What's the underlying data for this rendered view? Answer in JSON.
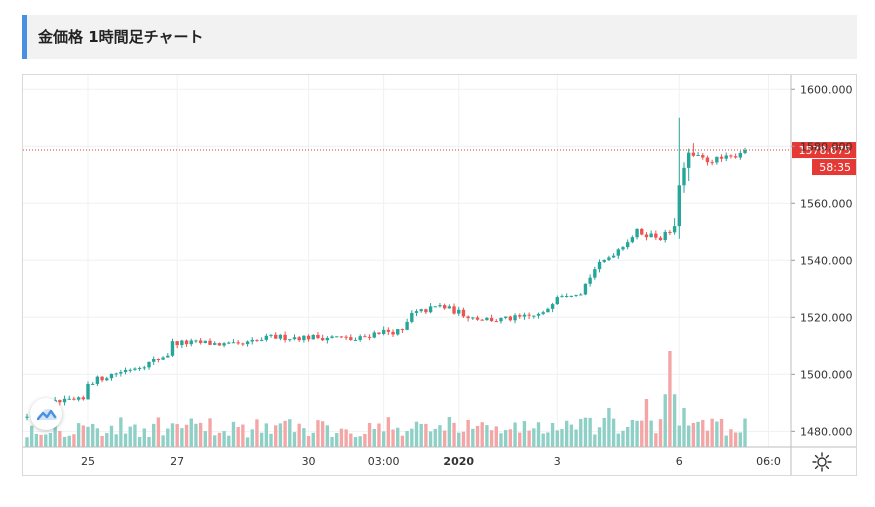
{
  "header": {
    "title": "金価格 1時間足チャート"
  },
  "colors": {
    "up": "#26a69a",
    "down": "#ef5350",
    "grid": "#eef1f4",
    "price_line": "#e53935",
    "accent": "#4a90e2",
    "volume_up": "#8fd0c6",
    "volume_down": "#f4a6a6"
  },
  "icons": {
    "logo": "tradingview-cloud-icon",
    "settings": "gear-icon"
  },
  "chart_data": {
    "type": "candlestick",
    "title": "金価格 1時間足チャート",
    "y_axis": {
      "ticks": [
        "1600.000",
        "1580.000",
        "1560.000",
        "1540.000",
        "1520.000",
        "1500.000",
        "1480.000"
      ],
      "tick_values": [
        1600,
        1580,
        1560,
        1540,
        1520,
        1500,
        1480
      ],
      "range": [
        1474.5,
        1605
      ]
    },
    "x_axis": {
      "ticks": [
        "25",
        "27",
        "30",
        "03:00",
        "2020",
        "3",
        "6",
        "06:0"
      ],
      "tick_index": [
        13,
        32,
        60,
        76,
        92,
        113,
        139,
        158
      ],
      "bold": [
        "2020"
      ]
    },
    "last_price": "1578.675",
    "countdown": "58:35",
    "trend_anchors": [
      [
        0,
        1486
      ],
      [
        6,
        1490
      ],
      [
        12,
        1491
      ],
      [
        13,
        1497
      ],
      [
        18,
        1500
      ],
      [
        26,
        1504
      ],
      [
        30,
        1507
      ],
      [
        31,
        1511
      ],
      [
        38,
        1511
      ],
      [
        45,
        1510
      ],
      [
        52,
        1513
      ],
      [
        59,
        1513
      ],
      [
        66,
        1513
      ],
      [
        70,
        1512
      ],
      [
        75,
        1515
      ],
      [
        80,
        1515
      ],
      [
        82,
        1521
      ],
      [
        88,
        1524
      ],
      [
        95,
        1520
      ],
      [
        100,
        1519
      ],
      [
        106,
        1520
      ],
      [
        110,
        1521
      ],
      [
        113,
        1528
      ],
      [
        118,
        1529
      ],
      [
        121,
        1537
      ],
      [
        126,
        1544
      ],
      [
        130,
        1550
      ],
      [
        135,
        1548
      ],
      [
        138,
        1551
      ],
      [
        139,
        1567
      ],
      [
        141,
        1577
      ],
      [
        145,
        1575
      ],
      [
        150,
        1576
      ],
      [
        153,
        1579
      ]
    ],
    "candle_count": 154,
    "volume_spikes": [
      [
        137,
        32
      ],
      [
        140,
        13
      ],
      [
        132,
        16
      ],
      [
        124,
        13
      ],
      [
        90,
        10
      ],
      [
        112,
        8
      ],
      [
        142,
        8
      ]
    ]
  }
}
